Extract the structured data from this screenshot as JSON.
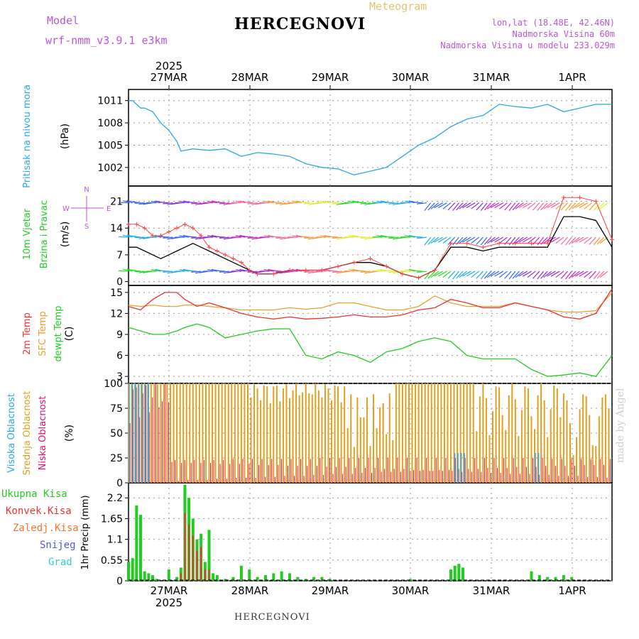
{
  "header": {
    "model_label": "Model",
    "model_name": "wrf-nmm_v3.9.1 e3km",
    "title": "HERCEGNOVI",
    "subtitle": "Meteogram",
    "coords": "lon,lat (18.48E, 42.46N)",
    "elevation": "Nadmorska Visina 60m",
    "model_elevation": "Nadmorska Visina u modelu 233.029m"
  },
  "footer": {
    "station": "HERCEGNOVI",
    "credit": "made by Angel"
  },
  "colors": {
    "pressure": "#2aa8e8",
    "wind": "#000000",
    "gust": "#ff4040",
    "temp2m": "#ee3333",
    "sfc": "#e8a030",
    "dewpt": "#22cc22",
    "high": "#2aa8e8",
    "mid": "#e0a020",
    "low": "#e0107a",
    "rain": "#22cc22",
    "conv": "#ee3333",
    "frz": "#ee7733",
    "snow": "#5555ee",
    "hail": "#33cccc",
    "title": "#000000",
    "label": "#bb55dd"
  },
  "chart_data": [
    {
      "type": "line",
      "title": "Pritisak na nivou mora",
      "ylabel": "(hPa)",
      "ylim": [
        999.5,
        1012.5
      ],
      "yticks": [
        1002,
        1005,
        1008,
        1011
      ],
      "xlim": [
        0,
        6
      ],
      "x_top_labels": [
        "27MAR",
        "28MAR",
        "29MAR",
        "30MAR",
        "31MAR",
        "1APR"
      ],
      "x_top_year": "2025",
      "series": [
        {
          "name": "Pressure",
          "x": [
            0,
            0.05,
            0.1,
            0.15,
            0.2,
            0.3,
            0.4,
            0.5,
            0.6,
            0.65,
            0.8,
            1.0,
            1.2,
            1.3,
            1.4,
            1.6,
            1.8,
            2.0,
            2.2,
            2.4,
            2.6,
            2.8,
            3.0,
            3.2,
            3.4,
            3.6,
            3.8,
            4.0,
            4.2,
            4.4,
            4.6,
            4.8,
            5.0,
            5.2,
            5.4,
            5.6,
            5.8,
            6.0
          ],
          "values": [
            1011.0,
            1011.0,
            1010.5,
            1010.0,
            1010.0,
            1009.5,
            1008.0,
            1007.0,
            1005.5,
            1004.2,
            1004.5,
            1004.3,
            1004.5,
            1004.0,
            1003.5,
            1004.0,
            1003.8,
            1003.5,
            1002.5,
            1002.0,
            1001.8,
            1001.0,
            1001.5,
            1002.0,
            1003.5,
            1005.0,
            1006.0,
            1007.5,
            1008.5,
            1009.0,
            1010.5,
            1010.2,
            1010.0,
            1010.5,
            1009.5,
            1010.0,
            1010.5,
            1010.5
          ]
        }
      ]
    },
    {
      "type": "line",
      "title": "10m Vjetar Brzina i Pravac",
      "ylabel": "(m/s)",
      "ylim": [
        -1,
        25
      ],
      "yticks": [
        0,
        7,
        14,
        21
      ],
      "compass": {
        "n": "N",
        "e": "E",
        "w": "W",
        "s": "S"
      },
      "series": [
        {
          "name": "Brzina",
          "x": [
            0,
            0.1,
            0.2,
            0.3,
            0.4,
            0.5,
            0.6,
            0.7,
            0.8,
            0.9,
            1.0,
            1.1,
            1.2,
            1.3,
            1.4,
            1.5,
            1.6,
            1.8,
            2.0,
            2.2,
            2.4,
            2.6,
            2.8,
            3.0,
            3.2,
            3.4,
            3.6,
            3.8,
            4.0,
            4.2,
            4.4,
            4.6,
            4.8,
            5.0,
            5.2,
            5.4,
            5.6,
            5.8,
            6.0
          ],
          "values": [
            9,
            9,
            8,
            7,
            6,
            7,
            8,
            9,
            10,
            9,
            8,
            7,
            6,
            5,
            4,
            3,
            2,
            2,
            3,
            3,
            3,
            4,
            5,
            5,
            4,
            2,
            1,
            3,
            9,
            9,
            8,
            9,
            9,
            9,
            9,
            17,
            17,
            16,
            9
          ]
        },
        {
          "name": "Udari",
          "x": [
            0,
            0.1,
            0.2,
            0.3,
            0.4,
            0.5,
            0.6,
            0.7,
            0.8,
            0.9,
            1.0,
            1.1,
            1.2,
            1.3,
            1.4,
            1.5,
            1.6,
            1.8,
            2.0,
            2.2,
            2.4,
            2.6,
            2.8,
            3.0,
            3.2,
            3.4,
            3.6,
            3.8,
            4.0,
            4.2,
            4.4,
            4.6,
            4.8,
            5.0,
            5.2,
            5.4,
            5.6,
            5.8,
            6.0
          ],
          "values": [
            15,
            15,
            14,
            12,
            12,
            13,
            14,
            15,
            14,
            12,
            9,
            8,
            7,
            6,
            5,
            3,
            2,
            2,
            3,
            3,
            3,
            4,
            5,
            6,
            4,
            2,
            1,
            3,
            10,
            10,
            9,
            10,
            10,
            10,
            10,
            22,
            22,
            21,
            11
          ]
        }
      ],
      "arrow_rows": [
        2.7,
        11.6,
        20.6
      ]
    },
    {
      "type": "line",
      "ylabel": "(C)",
      "ylim": [
        2,
        16
      ],
      "yticks": [
        3,
        6,
        9,
        12,
        15
      ],
      "series": [
        {
          "name": "2m Temp",
          "x": [
            0,
            0.15,
            0.3,
            0.45,
            0.6,
            0.7,
            0.85,
            1.0,
            1.2,
            1.4,
            1.6,
            1.8,
            2.0,
            2.2,
            2.4,
            2.6,
            2.8,
            3.0,
            3.2,
            3.4,
            3.6,
            3.8,
            4.0,
            4.2,
            4.4,
            4.6,
            4.8,
            5.0,
            5.2,
            5.4,
            5.6,
            5.8,
            6.0
          ],
          "values": [
            13,
            12.5,
            14,
            15,
            15,
            14,
            13,
            13.5,
            12.8,
            12,
            11.5,
            11.2,
            11.5,
            11.2,
            11.3,
            11.5,
            11.8,
            11.5,
            11.5,
            11.8,
            12.5,
            12.8,
            14,
            13.5,
            12.8,
            12.8,
            13.5,
            13,
            12.5,
            11.5,
            11.2,
            12,
            15.5
          ]
        },
        {
          "name": "SFC Temp",
          "x": [
            0,
            0.15,
            0.3,
            0.45,
            0.6,
            0.7,
            0.85,
            1.0,
            1.2,
            1.4,
            1.6,
            1.8,
            2.0,
            2.2,
            2.4,
            2.6,
            2.8,
            3.0,
            3.2,
            3.4,
            3.6,
            3.8,
            4.0,
            4.2,
            4.4,
            4.6,
            4.8,
            5.0,
            5.2,
            5.4,
            5.6,
            5.8,
            6.0
          ],
          "values": [
            13.2,
            13,
            13.2,
            13,
            13,
            13.2,
            13.2,
            13,
            12.8,
            12.5,
            12.5,
            12.5,
            12.8,
            12.6,
            12.8,
            13.5,
            13.5,
            13,
            12.5,
            12.5,
            13,
            14.5,
            13.5,
            13,
            13,
            13,
            13.5,
            13,
            12.5,
            12.2,
            12.2,
            12.4,
            15
          ]
        },
        {
          "name": "dewpt Temp",
          "x": [
            0,
            0.15,
            0.3,
            0.45,
            0.6,
            0.7,
            0.85,
            1.0,
            1.2,
            1.4,
            1.6,
            1.8,
            2.0,
            2.2,
            2.4,
            2.6,
            2.8,
            3.0,
            3.2,
            3.4,
            3.6,
            3.8,
            4.0,
            4.2,
            4.4,
            4.6,
            4.8,
            5.0,
            5.2,
            5.4,
            5.6,
            5.8,
            6.0
          ],
          "values": [
            10,
            9.5,
            9,
            9,
            9.5,
            10,
            10.5,
            10,
            8.5,
            9,
            9.5,
            9.8,
            9.8,
            6,
            5.5,
            6.5,
            6,
            5,
            6.5,
            7,
            8,
            8.5,
            8,
            6,
            5.5,
            5.5,
            5.5,
            4,
            3,
            3.2,
            3.5,
            3,
            6
          ]
        }
      ]
    },
    {
      "type": "bar",
      "ylabel": "(%)",
      "ylim": [
        0,
        100
      ],
      "yticks": [
        0,
        25,
        50,
        75,
        100
      ],
      "series_names": [
        "Visoka Oblacnost",
        "Srednja Oblacnost",
        "Niska Oblacnost"
      ]
    },
    {
      "type": "bar",
      "ylabel": "1hr Precip (mm)",
      "ylim": [
        0,
        2.6
      ],
      "yticks": [
        0,
        0.55,
        1.1,
        1.65,
        2.2
      ],
      "x_bottom_labels": [
        "27MAR",
        "28MAR",
        "29MAR",
        "30MAR",
        "31MAR",
        "1APR"
      ],
      "x_bottom_year": "2025",
      "legend": [
        "Ukupna Kisa",
        "Konvek.Kisa",
        "Zaledj.Kisa",
        "Snijeg",
        "Grad"
      ],
      "rain": {
        "x": [
          0,
          0.05,
          0.1,
          0.15,
          0.2,
          0.25,
          0.3,
          0.35,
          0.5,
          0.6,
          0.65,
          0.7,
          0.75,
          0.8,
          0.85,
          0.9,
          0.95,
          1.0,
          1.05,
          1.1,
          1.2,
          1.3,
          1.4,
          1.5,
          1.6,
          1.7,
          1.8,
          1.9,
          2.0,
          2.1,
          2.2,
          2.3,
          2.4,
          2.5,
          3.5,
          4.0,
          4.05,
          4.1,
          4.15,
          5.0,
          5.1,
          5.2,
          5.3,
          5.4,
          5.5
        ],
        "values": [
          0.5,
          0.6,
          2.0,
          1.75,
          0.25,
          0.2,
          0.15,
          0.05,
          0.3,
          0.1,
          0.35,
          2.55,
          2.2,
          1.65,
          1.1,
          1.25,
          0.5,
          1.35,
          0.2,
          0.15,
          0.05,
          0.1,
          0.4,
          0.3,
          0.1,
          0.15,
          0.2,
          0.25,
          0.2,
          0.1,
          0.05,
          0.1,
          0.1,
          0.05,
          0.05,
          0.3,
          0.4,
          0.45,
          0.35,
          0.25,
          0.15,
          0.1,
          0.1,
          0.15,
          0.1
        ]
      },
      "conv": {
        "x": [
          0.65,
          0.7,
          0.75,
          0.8,
          0.85,
          0.9,
          0.95,
          1.0
        ],
        "values": [
          0.2,
          1.8,
          1.5,
          1.2,
          0.8,
          0.9,
          0.3,
          0.3
        ]
      }
    }
  ]
}
